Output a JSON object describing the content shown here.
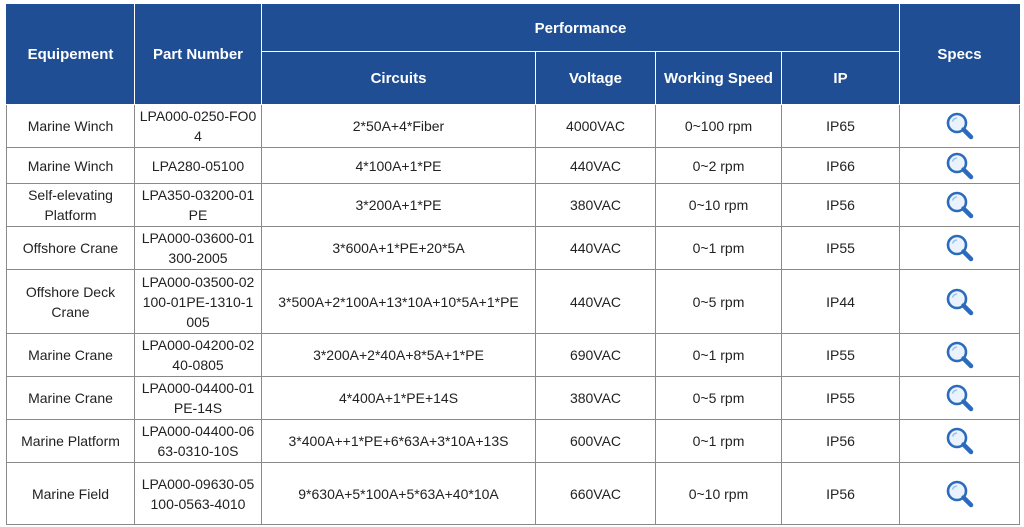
{
  "headers": {
    "equipment": "Equipement",
    "part_number": "Part Number",
    "performance": "Performance",
    "circuits": "Circuits",
    "voltage": "Voltage",
    "working_speed": "Working Speed",
    "ip": "IP",
    "specs": "Specs"
  },
  "rows": [
    {
      "equipment": "Marine Winch",
      "part_number": "LPA000-0250-FO04",
      "circuits": "2*50A+4*Fiber",
      "voltage": "4000VAC",
      "speed": "0~100 rpm",
      "ip": "IP65"
    },
    {
      "equipment": "Marine Winch",
      "part_number": "LPA280-05100",
      "circuits": "4*100A+1*PE",
      "voltage": "440VAC",
      "speed": "0~2 rpm",
      "ip": "IP66"
    },
    {
      "equipment": "Self-elevating Platform",
      "part_number": "LPA350-03200-01PE",
      "circuits": "3*200A+1*PE",
      "voltage": "380VAC",
      "speed": "0~10 rpm",
      "ip": "IP56"
    },
    {
      "equipment": "Offshore Crane",
      "part_number": "LPA000-03600-01300-2005",
      "circuits": "3*600A+1*PE+20*5A",
      "voltage": "440VAC",
      "speed": "0~1 rpm",
      "ip": "IP55"
    },
    {
      "equipment": "Offshore Deck Crane",
      "part_number": "LPA000-03500-02100-01PE-1310-1005",
      "circuits": "3*500A+2*100A+13*10A+10*5A+1*PE",
      "voltage": "440VAC",
      "speed": "0~5 rpm",
      "ip": "IP44"
    },
    {
      "equipment": "Marine Crane",
      "part_number": "LPA000-04200-0240-0805",
      "circuits": "3*200A+2*40A+8*5A+1*PE",
      "voltage": "690VAC",
      "speed": "0~1 rpm",
      "ip": "IP55"
    },
    {
      "equipment": "Marine Crane",
      "part_number": "LPA000-04400-01PE-14S",
      "circuits": "4*400A+1*PE+14S",
      "voltage": "380VAC",
      "speed": "0~5 rpm",
      "ip": "IP55"
    },
    {
      "equipment": "Marine Platform",
      "part_number": "LPA000-04400-0663-0310-10S",
      "circuits": "3*400A++1*PE+6*63A+3*10A+13S",
      "voltage": "600VAC",
      "speed": "0~1 rpm",
      "ip": "IP56"
    },
    {
      "equipment": "Marine Field",
      "part_number": "LPA000-09630-05100-0563-4010",
      "circuits": "9*630A+5*100A+5*63A+40*10A",
      "voltage": "660VAC",
      "speed": "0~10 rpm",
      "ip": "IP56"
    }
  ],
  "specs_icon": "magnifier-icon",
  "colors": {
    "header_bg": "#1f4e95",
    "header_text": "#ffffff",
    "icon_blue": "#2a6bbd"
  }
}
